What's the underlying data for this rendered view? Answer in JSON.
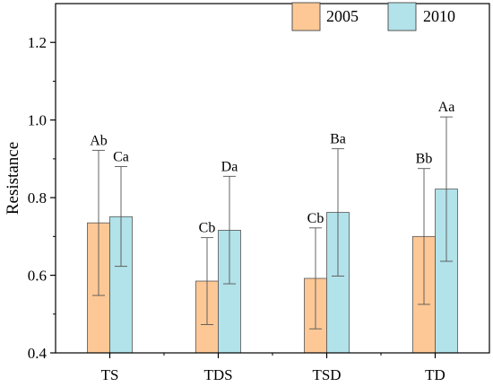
{
  "chart_data": {
    "type": "bar",
    "ylabel": "Resistance",
    "xlabel": "",
    "ylim": [
      0.4,
      1.3
    ],
    "yticks": [
      "0.4",
      "0.6",
      "0.8",
      "1.0",
      "1.2"
    ],
    "categories": [
      "TS",
      "TDS",
      "TSD",
      "TD"
    ],
    "series": [
      {
        "name": "2005",
        "color": "#FDC895",
        "values": [
          0.735,
          0.585,
          0.592,
          0.7
        ],
        "err_low": [
          0.548,
          0.473,
          0.462,
          0.525
        ],
        "err_high": [
          0.922,
          0.697,
          0.722,
          0.875
        ],
        "labels": [
          "Ab",
          "Cb",
          "Cb",
          "Bb"
        ]
      },
      {
        "name": "2010",
        "color": "#B2E2EA",
        "values": [
          0.751,
          0.716,
          0.762,
          0.822
        ],
        "err_low": [
          0.623,
          0.578,
          0.598,
          0.636
        ],
        "err_high": [
          0.88,
          0.855,
          0.926,
          1.008
        ],
        "labels": [
          "Ca",
          "Da",
          "Ba",
          "Aa"
        ]
      }
    ],
    "legend_position": "top-right",
    "grid": false
  }
}
